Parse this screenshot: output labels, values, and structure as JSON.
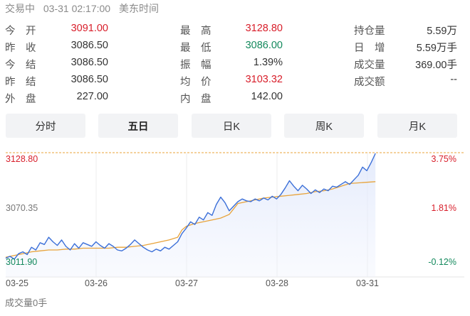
{
  "status": {
    "state": "交易中",
    "datetime": "03-31 02:17:00",
    "zone": "美东时间"
  },
  "quote": {
    "col1": [
      {
        "label": "今　开",
        "value": "3091.00",
        "color": "red"
      },
      {
        "label": "昨　收",
        "value": "3086.50",
        "color": ""
      },
      {
        "label": "今　结",
        "value": "3086.50",
        "color": ""
      },
      {
        "label": "昨　结",
        "value": "3086.50",
        "color": ""
      },
      {
        "label": "外　盘",
        "value": "227.00",
        "color": ""
      }
    ],
    "col2": [
      {
        "label": "最　高",
        "value": "3128.80",
        "color": "red"
      },
      {
        "label": "最　低",
        "value": "3086.00",
        "color": "green"
      },
      {
        "label": "振　幅",
        "value": "1.39%",
        "color": ""
      },
      {
        "label": "均　价",
        "value": "3103.32",
        "color": "red"
      },
      {
        "label": "内　盘",
        "value": "142.00",
        "color": ""
      }
    ],
    "col3": [
      {
        "label": "持仓量",
        "value": "5.59万"
      },
      {
        "label": "日　增",
        "value": "5.59万手"
      },
      {
        "label": "成交量",
        "value": "369.00手"
      },
      {
        "label": "成交额",
        "value": "--"
      }
    ]
  },
  "tabs": [
    {
      "label": "分时",
      "active": false
    },
    {
      "label": "五日",
      "active": true
    },
    {
      "label": "日K",
      "active": false
    },
    {
      "label": "周K",
      "active": false
    },
    {
      "label": "月K",
      "active": false
    }
  ],
  "chart_data": {
    "type": "line",
    "price_axis": {
      "top": "3128.80",
      "mid": "3070.35",
      "bottom": "3011.90"
    },
    "pct_axis": {
      "top": "3.75%",
      "mid": "1.81%",
      "bottom": "-0.12%"
    },
    "x_labels": [
      "03-25",
      "03-26",
      "03-27",
      "03-28",
      "03-31"
    ],
    "ylim": [
      3011.9,
      3128.8
    ],
    "reference_line": 3128.8,
    "series": [
      {
        "role": "price",
        "color": "#3b6fd8",
        "values": [
          3013,
          3015,
          3012,
          3018,
          3020,
          3017,
          3025,
          3022,
          3030,
          3028,
          3036,
          3031,
          3027,
          3033,
          3026,
          3022,
          3029,
          3024,
          3030,
          3028,
          3026,
          3031,
          3027,
          3024,
          3029,
          3026,
          3022,
          3021,
          3024,
          3028,
          3033,
          3029,
          3025,
          3022,
          3020,
          3023,
          3021,
          3025,
          3023,
          3027,
          3031,
          3040,
          3046,
          3053,
          3050,
          3058,
          3055,
          3063,
          3060,
          3072,
          3080,
          3074,
          3065,
          3070,
          3075,
          3078,
          3076,
          3075,
          3078,
          3076,
          3079,
          3077,
          3081,
          3078,
          3083,
          3090,
          3098,
          3092,
          3087,
          3093,
          3089,
          3084,
          3088,
          3085,
          3089,
          3087,
          3092,
          3091,
          3094,
          3097,
          3094,
          3099,
          3104,
          3113,
          3109,
          3118,
          3128
        ],
        "x": [
          0,
          1.5,
          3,
          4.5,
          6,
          7.5,
          9,
          10.5,
          12,
          13.5,
          15,
          16.5,
          18,
          19.5,
          21,
          22.5,
          24,
          25.5,
          27,
          28.5,
          30,
          31.5,
          33,
          34.5,
          36,
          37.5,
          39,
          40.5,
          42,
          43.5,
          45,
          46.5,
          48,
          49.5,
          51,
          52.5,
          54,
          55.5,
          57,
          58.5,
          60,
          61.5,
          63,
          64.5,
          66,
          67.5,
          69,
          70.5,
          72,
          73.5,
          75,
          76.5,
          78,
          79.5,
          81,
          82.5,
          84,
          85.5,
          87,
          88.5,
          90,
          91.5,
          93,
          94.5,
          96,
          97.5,
          99,
          100.5,
          102,
          103.5,
          105,
          106.5,
          108,
          109.5,
          111,
          112.5,
          114,
          115.5,
          117,
          118.5,
          120,
          121.5,
          123,
          124.5,
          126,
          127.5,
          129
        ]
      },
      {
        "role": "average",
        "color": "#e8a33a",
        "values": [
          3014,
          3016,
          3018,
          3020,
          3021,
          3022,
          3022,
          3023,
          3023,
          3024,
          3024,
          3024,
          3024,
          3025,
          3025,
          3026,
          3027,
          3029,
          3031,
          3033,
          3036,
          3044,
          3048,
          3051,
          3053,
          3055,
          3057,
          3061,
          3069,
          3073,
          3075,
          3077,
          3079,
          3080,
          3081,
          3082,
          3083,
          3084,
          3086,
          3087,
          3089,
          3092,
          3095,
          3097
        ],
        "x": [
          0,
          3,
          6,
          9,
          12,
          15,
          18,
          21,
          24,
          27,
          30,
          33,
          36,
          39,
          42,
          45,
          48,
          51,
          54,
          57,
          60,
          61.5,
          63,
          66,
          69,
          72,
          75,
          78,
          80,
          81,
          84,
          87,
          90,
          93,
          96,
          99,
          102,
          105,
          108,
          111,
          114,
          117,
          120,
          129
        ]
      }
    ],
    "x_max": 160
  },
  "footer": {
    "volume_label": "成交量0手"
  }
}
